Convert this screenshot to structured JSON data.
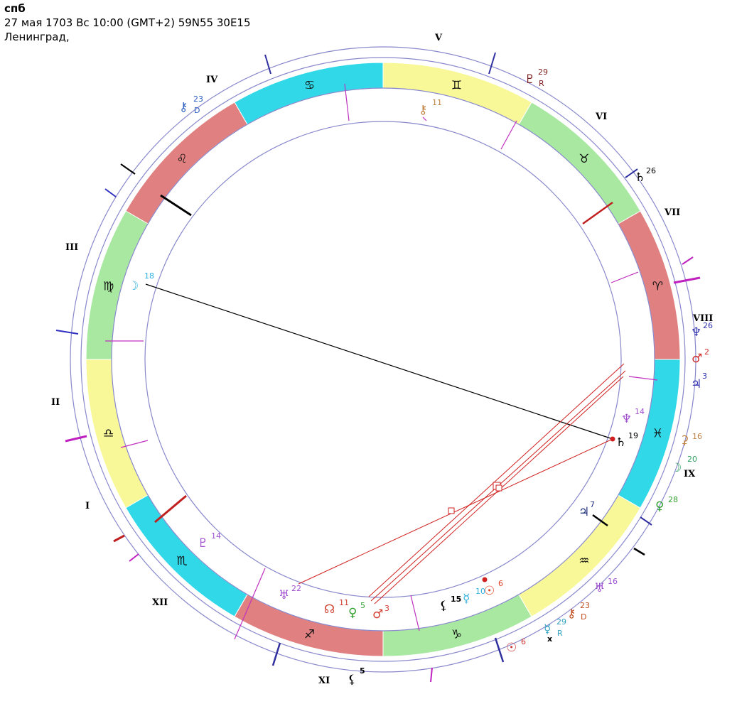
{
  "header": {
    "title": "спб",
    "line1": "27 мая 1703  Вс  10:00 (GMT+2) 59N55  30E15",
    "line2": "Ленинград,"
  },
  "houses": [
    "I",
    "II",
    "III",
    "IV",
    "V",
    "VI",
    "VII",
    "VIII",
    "IX",
    "X",
    "XI",
    "XII"
  ],
  "signs": [
    {
      "glyph": "♈",
      "name": "aries",
      "color": "#e08080"
    },
    {
      "glyph": "♉",
      "name": "taurus",
      "color": "#a8e8a0"
    },
    {
      "glyph": "♊",
      "name": "gemini",
      "color": "#f8f898"
    },
    {
      "glyph": "♋",
      "name": "cancer",
      "color": "#30d8e8"
    },
    {
      "glyph": "♌",
      "name": "leo",
      "color": "#e08080"
    },
    {
      "glyph": "♍",
      "name": "virgo",
      "color": "#a8e8a0"
    },
    {
      "glyph": "♎",
      "name": "libra",
      "color": "#f8f898"
    },
    {
      "glyph": "♏",
      "name": "scorpio",
      "color": "#30d8e8"
    },
    {
      "glyph": "♐",
      "name": "sagittarius",
      "color": "#e08080"
    },
    {
      "glyph": "♑",
      "name": "capricorn",
      "color": "#a8e8a0"
    },
    {
      "glyph": "♒",
      "name": "aquarius",
      "color": "#f8f898"
    },
    {
      "glyph": "♓",
      "name": "pisces",
      "color": "#30d8e8"
    }
  ],
  "inner_planets": [
    {
      "name": "moon",
      "glyph": "☽",
      "deg": "18",
      "color": "#30b0e0"
    },
    {
      "name": "chiron",
      "glyph": "⚷",
      "deg": "11",
      "color": "#c08040"
    },
    {
      "name": "neptune",
      "glyph": "♆",
      "deg": "14",
      "color": "#a050d0"
    },
    {
      "name": "saturn",
      "glyph": "♄",
      "deg": "19",
      "color": "#000000"
    },
    {
      "name": "jupiter",
      "glyph": "♃",
      "deg": "7",
      "color": "#203080"
    },
    {
      "name": "sun",
      "glyph": "☉",
      "deg": "6",
      "color": "#e04020"
    },
    {
      "name": "mercury",
      "glyph": "☿",
      "deg": "10",
      "color": "#30b0e0"
    },
    {
      "name": "lilith",
      "glyph": "⚸",
      "deg": "15",
      "color": "#000000"
    },
    {
      "name": "mars",
      "glyph": "♂",
      "deg": "3",
      "color": "#d04030"
    },
    {
      "name": "venus",
      "glyph": "♀",
      "deg": "5",
      "color": "#30a030"
    },
    {
      "name": "node",
      "glyph": "☊",
      "deg": "11",
      "color": "#d04030"
    },
    {
      "name": "uranus",
      "glyph": "♅",
      "deg": "22",
      "color": "#a050d0"
    },
    {
      "name": "pluto",
      "glyph": "♇",
      "deg": "14",
      "color": "#a050d0"
    }
  ],
  "outer_planets": [
    {
      "name": "pluto-outer",
      "glyph": "♇",
      "deg": "29",
      "sub": "R",
      "color": "#802020"
    },
    {
      "name": "chiron-outer",
      "glyph": "⚷",
      "deg": "23",
      "sub": "D",
      "color": "#3060c0"
    },
    {
      "name": "saturn-outer",
      "glyph": "♄",
      "deg": "26",
      "color": "#000000"
    },
    {
      "name": "neptune-outer",
      "glyph": "♆",
      "deg": "26",
      "color": "#3030b0"
    },
    {
      "name": "mars-outer",
      "glyph": "♂",
      "deg": "2",
      "color": "#d03030"
    },
    {
      "name": "jupiter-outer",
      "glyph": "♃",
      "deg": "3",
      "color": "#3030b0"
    },
    {
      "name": "ceres-outer",
      "glyph": "⚳",
      "deg": "16",
      "color": "#c08040"
    },
    {
      "name": "moon-outer",
      "glyph": "☽",
      "deg": "20",
      "color": "#30a060"
    },
    {
      "name": "venus-outer",
      "glyph": "♀",
      "deg": "28",
      "color": "#30a030"
    },
    {
      "name": "uranus-outer",
      "glyph": "♅",
      "deg": "16",
      "color": "#a050d0"
    },
    {
      "name": "chiron-outer-2",
      "glyph": "⚷",
      "deg": "23",
      "sub": "D",
      "color": "#c05020"
    },
    {
      "name": "mercury-outer",
      "glyph": "☿",
      "deg": "29",
      "sub": "R",
      "color": "#30a0c0"
    },
    {
      "name": "sun-outer",
      "glyph": "☉",
      "deg": "6",
      "color": "#d03030"
    },
    {
      "name": "lilith-outer",
      "glyph": "⚸",
      "deg": "5",
      "color": "#000000"
    }
  ],
  "node_label": "x"
}
